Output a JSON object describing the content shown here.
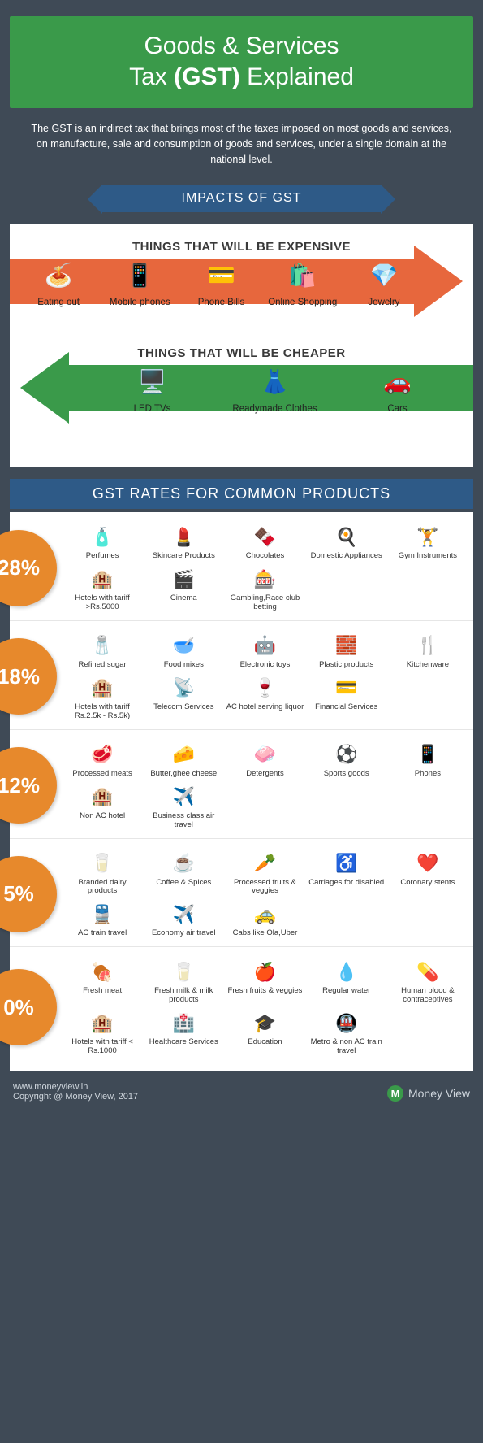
{
  "header": {
    "title_pre": "Goods & Services",
    "title_mid": "Tax ",
    "title_bold": "(GST)",
    "title_post": " Explained"
  },
  "intro": "The GST is an indirect tax that brings most of the taxes imposed on most goods and services, on manufacture, sale and consumption of goods and services, under a single domain at the national level.",
  "banners": {
    "impacts": "IMPACTS OF GST",
    "rates": "GST RATES FOR COMMON PRODUCTS"
  },
  "expensive": {
    "title": "THINGS THAT WILL BE EXPENSIVE",
    "color": "#e7673d",
    "items": [
      {
        "icon": "🍝",
        "label": "Eating out"
      },
      {
        "icon": "📱",
        "label": "Mobile phones"
      },
      {
        "icon": "💳",
        "label": "Phone Bills"
      },
      {
        "icon": "🛍️",
        "label": "Online Shopping"
      },
      {
        "icon": "💎",
        "label": "Jewelry"
      }
    ]
  },
  "cheaper": {
    "title": "THINGS THAT WILL BE CHEAPER",
    "color": "#3a9a4a",
    "items": [
      {
        "icon": "🖥️",
        "label": "LED TVs"
      },
      {
        "icon": "👗",
        "label": "Readymade Clothes"
      },
      {
        "icon": "🚗",
        "label": "Cars"
      }
    ]
  },
  "rate_blocks": [
    {
      "pct": "28%",
      "items": [
        {
          "icon": "🧴",
          "label": "Perfumes"
        },
        {
          "icon": "💄",
          "label": "Skincare Products"
        },
        {
          "icon": "🍫",
          "label": "Chocolates"
        },
        {
          "icon": "🍳",
          "label": "Domestic Appliances"
        },
        {
          "icon": "🏋️",
          "label": "Gym Instruments"
        },
        {
          "icon": "🏨",
          "label": "Hotels with tariff >Rs.5000"
        },
        {
          "icon": "🎬",
          "label": "Cinema"
        },
        {
          "icon": "🎰",
          "label": "Gambling,Race club betting"
        }
      ]
    },
    {
      "pct": "18%",
      "items": [
        {
          "icon": "🧂",
          "label": "Refined sugar"
        },
        {
          "icon": "🥣",
          "label": "Food mixes"
        },
        {
          "icon": "🤖",
          "label": "Electronic toys"
        },
        {
          "icon": "🧱",
          "label": "Plastic products"
        },
        {
          "icon": "🍴",
          "label": "Kitchenware"
        },
        {
          "icon": "🏨",
          "label": "Hotels with tariff Rs.2.5k - Rs.5k)"
        },
        {
          "icon": "📡",
          "label": "Telecom Services"
        },
        {
          "icon": "🍷",
          "label": "AC hotel serving liquor"
        },
        {
          "icon": "💳",
          "label": "Financial Services"
        }
      ]
    },
    {
      "pct": "12%",
      "items": [
        {
          "icon": "🥩",
          "label": "Processed meats"
        },
        {
          "icon": "🧀",
          "label": "Butter,ghee cheese"
        },
        {
          "icon": "🧼",
          "label": "Detergents"
        },
        {
          "icon": "⚽",
          "label": "Sports goods"
        },
        {
          "icon": "📱",
          "label": "Phones"
        },
        {
          "icon": "🏨",
          "label": "Non AC hotel"
        },
        {
          "icon": "✈️",
          "label": "Business class air travel"
        }
      ]
    },
    {
      "pct": "5%",
      "items": [
        {
          "icon": "🥛",
          "label": "Branded dairy products"
        },
        {
          "icon": "☕",
          "label": "Coffee & Spices"
        },
        {
          "icon": "🥕",
          "label": "Processed fruits & veggies"
        },
        {
          "icon": "♿",
          "label": "Carriages for disabled"
        },
        {
          "icon": "❤️",
          "label": "Coronary stents"
        },
        {
          "icon": "🚆",
          "label": "AC train travel"
        },
        {
          "icon": "✈️",
          "label": "Economy air travel"
        },
        {
          "icon": "🚕",
          "label": "Cabs like Ola,Uber"
        }
      ]
    },
    {
      "pct": "0%",
      "items": [
        {
          "icon": "🍖",
          "label": "Fresh meat"
        },
        {
          "icon": "🥛",
          "label": "Fresh milk & milk products"
        },
        {
          "icon": "🍎",
          "label": "Fresh fruits & veggies"
        },
        {
          "icon": "💧",
          "label": "Regular water"
        },
        {
          "icon": "💊",
          "label": "Human blood & contraceptives"
        },
        {
          "icon": "🏨",
          "label": "Hotels with tariff < Rs.1000"
        },
        {
          "icon": "🏥",
          "label": "Healthcare Services"
        },
        {
          "icon": "🎓",
          "label": "Education"
        },
        {
          "icon": "🚇",
          "label": "Metro & non AC train travel"
        }
      ]
    }
  ],
  "footer": {
    "url": "www.moneyview.in",
    "copyright": "Copyright @ Money View, 2017",
    "brand": "Money View",
    "logo_letter": "M"
  },
  "colors": {
    "pct_circle": "#e7892c",
    "banner": "#2e5a87"
  }
}
